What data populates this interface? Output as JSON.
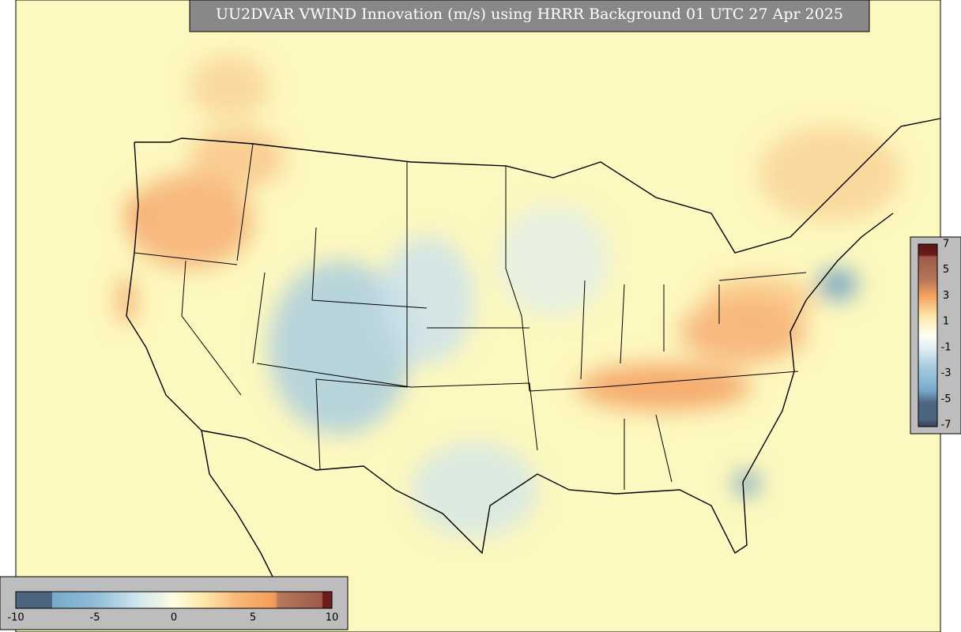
{
  "title": "UU2DVAR VWIND Innovation (m/s) using HRRR Background 01 UTC 27 Apr 2025",
  "colorbars": {
    "right": {
      "ticks": [
        7,
        5,
        3,
        1,
        -1,
        -3,
        -5,
        -7
      ]
    },
    "bottom": {
      "ticks": [
        -10,
        -5,
        0,
        5,
        10
      ]
    }
  }
}
